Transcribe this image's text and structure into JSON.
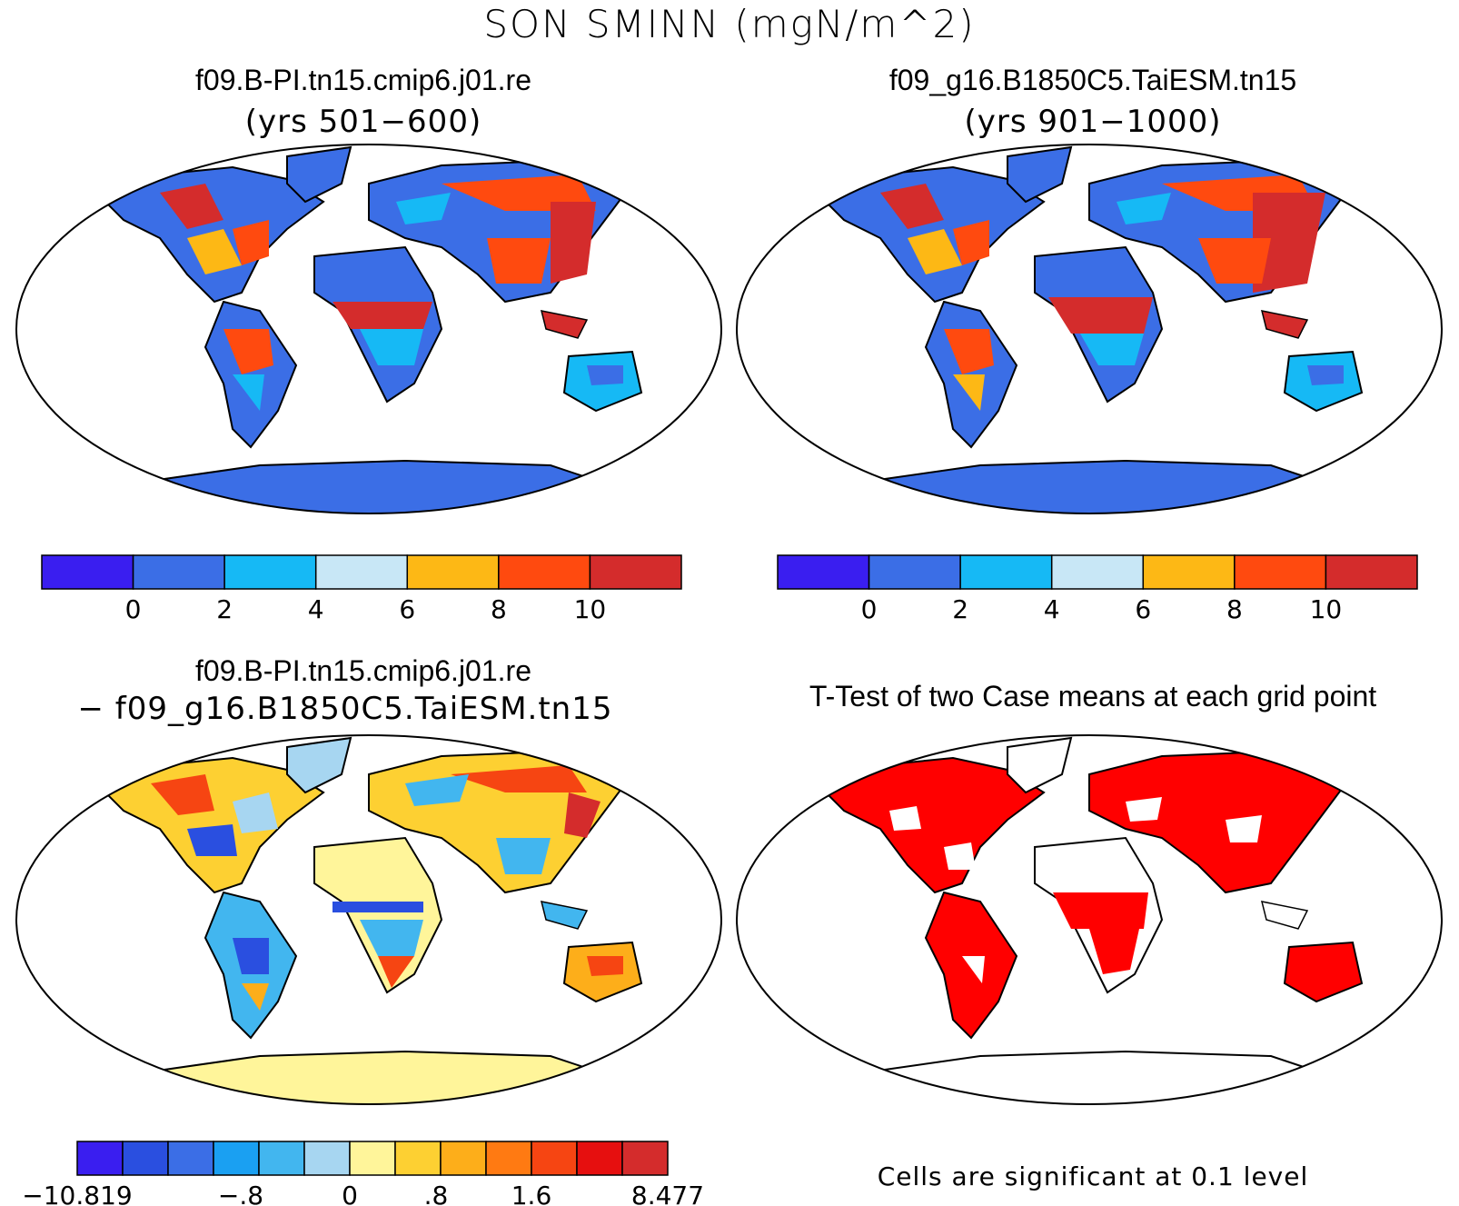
{
  "title": "SON SMINN (mgN/m^2)",
  "panels": [
    {
      "name": "f09.B-PI.tn15.cmip6.j01.re",
      "subtitle": "(yrs 501−600)"
    },
    {
      "name": "f09_g16.B1850C5.TaiESM.tn15",
      "subtitle": "(yrs 901−1000)"
    },
    {
      "name": "f09.B-PI.tn15.cmip6.j01.re",
      "subtitle": "− f09_g16.B1850C5.TaiESM.tn15"
    },
    {
      "name": "T-Test of two Case means at each grid point",
      "subtitle": ""
    }
  ],
  "colorbar_abs": {
    "colors": [
      "#3a1ef0",
      "#3b6ee6",
      "#16b9f5",
      "#c8e7f6",
      "#fdb815",
      "#ff4a0f",
      "#d42c2c"
    ],
    "labels": [
      "0",
      "2",
      "4",
      "6",
      "8",
      "10"
    ]
  },
  "colorbar_diff": {
    "colors": [
      "#3a1ef0",
      "#2a4fe0",
      "#3b6ee6",
      "#1aa0f2",
      "#42b6ef",
      "#a7d6f1",
      "#fff59a",
      "#fdd032",
      "#fdae1a",
      "#ff7a12",
      "#f64512",
      "#e60f0f",
      "#d42c2c"
    ],
    "labels": [
      "−10.819",
      "−.8",
      "0",
      ".8",
      "1.6",
      "8.477"
    ]
  },
  "significance_note": "Cells are significant at 0.1 level",
  "colors": {
    "significant": "#ff0000",
    "land_outline": "#000000"
  }
}
